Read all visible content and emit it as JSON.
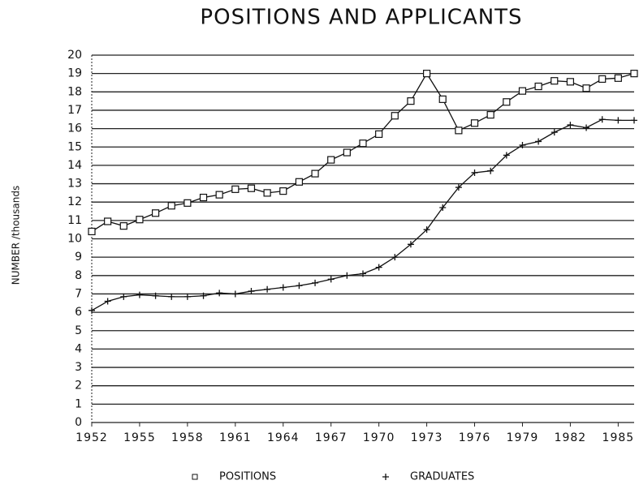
{
  "chart_data": {
    "type": "line",
    "title": "POSITIONS AND APPLICANTS",
    "ylabel": "NUMBER /thousands",
    "x": [
      1952,
      1953,
      1954,
      1955,
      1956,
      1957,
      1958,
      1959,
      1960,
      1961,
      1962,
      1963,
      1964,
      1965,
      1966,
      1967,
      1968,
      1969,
      1970,
      1971,
      1972,
      1973,
      1974,
      1975,
      1976,
      1977,
      1978,
      1979,
      1980,
      1981,
      1982,
      1983,
      1984,
      1985,
      1986
    ],
    "series": [
      {
        "name": "POSITIONS",
        "marker": "square",
        "color": "#111111",
        "values": [
          10.4,
          10.95,
          10.7,
          11.05,
          11.4,
          11.8,
          11.95,
          12.25,
          12.4,
          12.7,
          12.75,
          12.5,
          12.6,
          13.1,
          13.55,
          14.3,
          14.7,
          15.2,
          15.7,
          16.7,
          17.5,
          19.0,
          17.6,
          15.9,
          16.3,
          16.75,
          17.45,
          18.05,
          18.3,
          18.6,
          18.55,
          18.2,
          18.7,
          18.75,
          19.0
        ]
      },
      {
        "name": "GRADUATES",
        "marker": "plus",
        "color": "#111111",
        "values": [
          6.1,
          6.6,
          6.85,
          6.95,
          6.9,
          6.85,
          6.85,
          6.9,
          7.05,
          7.0,
          7.15,
          7.25,
          7.35,
          7.45,
          7.6,
          7.8,
          8.0,
          8.1,
          8.45,
          9.0,
          9.7,
          10.5,
          11.7,
          12.8,
          13.6,
          13.7,
          14.55,
          15.1,
          15.3,
          15.8,
          16.2,
          16.05,
          16.5,
          16.45,
          16.45
        ]
      }
    ],
    "xlim": [
      1952,
      1986
    ],
    "xticks": [
      1952,
      1955,
      1958,
      1961,
      1964,
      1967,
      1970,
      1973,
      1976,
      1979,
      1982,
      1985
    ],
    "ylim": [
      0,
      20
    ],
    "yticks": [
      0,
      1,
      2,
      3,
      4,
      5,
      6,
      7,
      8,
      9,
      10,
      11,
      12,
      13,
      14,
      15,
      16,
      17,
      18,
      19,
      20
    ],
    "grid": true
  }
}
